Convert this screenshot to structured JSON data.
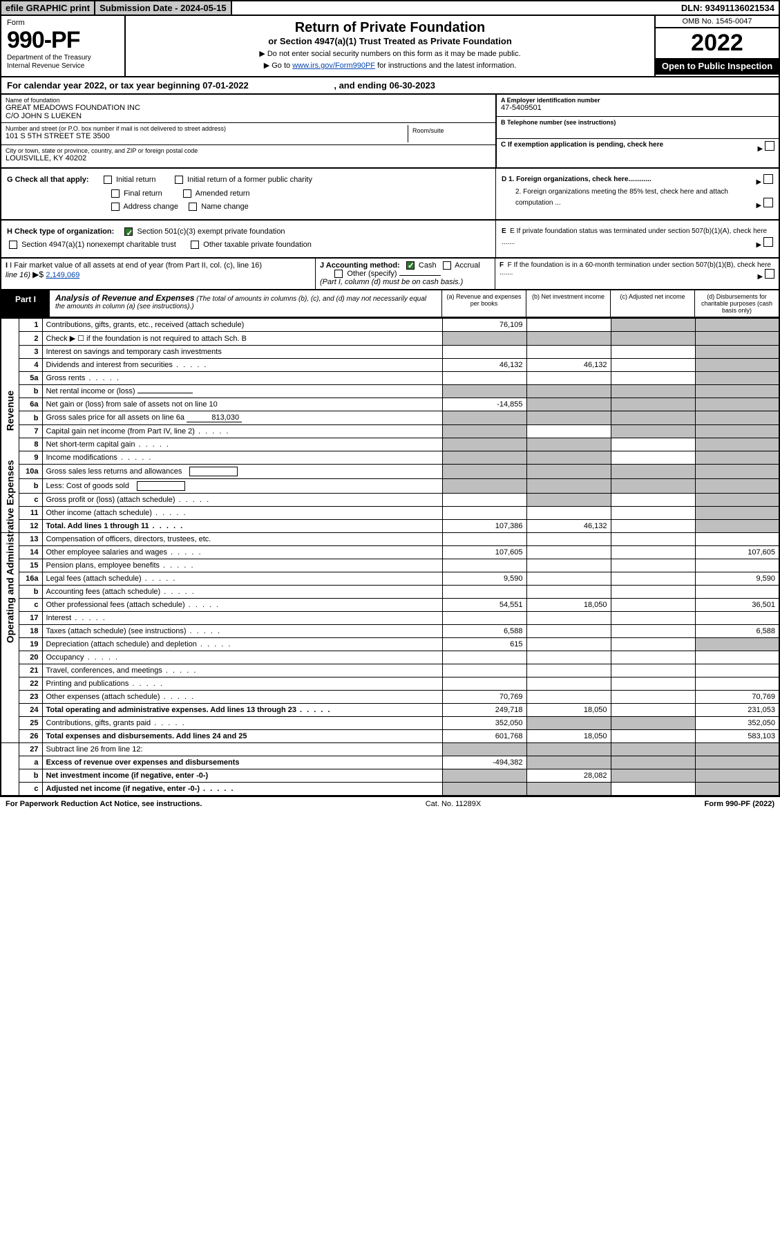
{
  "top": {
    "efile": "efile GRAPHIC print",
    "subdate_label": "Submission Date - 2024-05-15",
    "dln": "DLN: 93491136021534"
  },
  "header": {
    "form_label": "Form",
    "form_number": "990-PF",
    "dept1": "Department of the Treasury",
    "dept2": "Internal Revenue Service",
    "title": "Return of Private Foundation",
    "subtitle": "or Section 4947(a)(1) Trust Treated as Private Foundation",
    "note1": "▶ Do not enter social security numbers on this form as it may be made public.",
    "note2_pre": "▶ Go to ",
    "note2_link": "www.irs.gov/Form990PF",
    "note2_post": " for instructions and the latest information.",
    "omb": "OMB No. 1545-0047",
    "year": "2022",
    "open": "Open to Public Inspection"
  },
  "calyear": {
    "pre": "For calendar year 2022, or tax year beginning ",
    "begin": "07-01-2022",
    "mid": " , and ending ",
    "end": "06-30-2023"
  },
  "info": {
    "name_lbl": "Name of foundation",
    "name1": "GREAT MEADOWS FOUNDATION INC",
    "name2": "C/O JOHN S LUEKEN",
    "addr_lbl": "Number and street (or P.O. box number if mail is not delivered to street address)",
    "addr": "101 S 5TH STREET STE 3500",
    "room_lbl": "Room/suite",
    "city_lbl": "City or town, state or province, country, and ZIP or foreign postal code",
    "city": "LOUISVILLE, KY  40202",
    "a_lbl": "A Employer identification number",
    "a_val": "47-5409501",
    "b_lbl": "B Telephone number (see instructions)",
    "c_lbl": "C If exemption application is pending, check here",
    "d1": "D 1. Foreign organizations, check here............",
    "d2": "2. Foreign organizations meeting the 85% test, check here and attach computation ...",
    "e": "E  If private foundation status was terminated under section 507(b)(1)(A), check here .......",
    "f": "F  If the foundation is in a 60-month termination under section 507(b)(1)(B), check here ......."
  },
  "g": {
    "label": "G Check all that apply:",
    "opts": [
      "Initial return",
      "Final return",
      "Address change",
      "Initial return of a former public charity",
      "Amended return",
      "Name change"
    ]
  },
  "h": {
    "label": "H Check type of organization:",
    "opt1": "Section 501(c)(3) exempt private foundation",
    "opt2": "Section 4947(a)(1) nonexempt charitable trust",
    "opt3": "Other taxable private foundation"
  },
  "i": {
    "label": "I Fair market value of all assets at end of year (from Part II, col. (c), line 16)",
    "arrow": "▶$ ",
    "val": "2,149,069"
  },
  "j": {
    "label": "J Accounting method:",
    "cash": "Cash",
    "accrual": "Accrual",
    "other": "Other (specify)",
    "note": "(Part I, column (d) must be on cash basis.)"
  },
  "part1": {
    "label": "Part I",
    "title": "Analysis of Revenue and Expenses",
    "sub": " (The total of amounts in columns (b), (c), and (d) may not necessarily equal the amounts in column (a) (see instructions).)",
    "cols": {
      "a": "(a)  Revenue and expenses per books",
      "b": "(b)  Net investment income",
      "c": "(c)  Adjusted net income",
      "d": "(d)  Disbursements for charitable purposes (cash basis only)"
    }
  },
  "side": {
    "revenue": "Revenue",
    "expenses": "Operating and Administrative Expenses"
  },
  "rows": [
    {
      "n": "1",
      "d": "Contributions, gifts, grants, etc., received (attach schedule)",
      "a": "76,109",
      "shadeC": true,
      "shadeD": true
    },
    {
      "n": "2",
      "d": "Check ▶ ☐ if the foundation is not required to attach Sch. B",
      "dotsRow": true,
      "shadeA": true,
      "shadeB": true,
      "shadeC": true,
      "shadeD": true
    },
    {
      "n": "3",
      "d": "Interest on savings and temporary cash investments",
      "shadeD": true
    },
    {
      "n": "4",
      "d": "Dividends and interest from securities",
      "dots": true,
      "a": "46,132",
      "b": "46,132",
      "shadeD": true
    },
    {
      "n": "5a",
      "d": "Gross rents",
      "dots": true,
      "shadeD": true
    },
    {
      "n": "b",
      "d": "Net rental income or (loss)",
      "underline": true,
      "shadeA": true,
      "shadeB": true,
      "shadeC": true,
      "shadeD": true
    },
    {
      "n": "6a",
      "d": "Net gain or (loss) from sale of assets not on line 10",
      "a": "-14,855",
      "shadeB": true,
      "shadeC": true,
      "shadeD": true
    },
    {
      "n": "b",
      "d": "Gross sales price for all assets on line 6a",
      "inlineVal": "813,030",
      "shadeA": true,
      "shadeB": true,
      "shadeC": true,
      "shadeD": true
    },
    {
      "n": "7",
      "d": "Capital gain net income (from Part IV, line 2)",
      "dots": true,
      "shadeA": true,
      "shadeC": true,
      "shadeD": true
    },
    {
      "n": "8",
      "d": "Net short-term capital gain",
      "dots": true,
      "shadeA": true,
      "shadeB": true,
      "shadeD": true
    },
    {
      "n": "9",
      "d": "Income modifications",
      "dots": true,
      "shadeA": true,
      "shadeB": true,
      "shadeD": true
    },
    {
      "n": "10a",
      "d": "Gross sales less returns and allowances",
      "box": true,
      "shadeA": true,
      "shadeB": true,
      "shadeC": true,
      "shadeD": true
    },
    {
      "n": "b",
      "d": "Less: Cost of goods sold",
      "dots": true,
      "box": true,
      "shadeA": true,
      "shadeB": true,
      "shadeC": true,
      "shadeD": true
    },
    {
      "n": "c",
      "d": "Gross profit or (loss) (attach schedule)",
      "dots": true,
      "shadeB": true,
      "shadeD": true
    },
    {
      "n": "11",
      "d": "Other income (attach schedule)",
      "dots": true,
      "shadeD": true
    },
    {
      "n": "12",
      "d": "Total. Add lines 1 through 11",
      "bold": true,
      "dots": true,
      "a": "107,386",
      "b": "46,132",
      "shadeD": true
    }
  ],
  "exp_rows": [
    {
      "n": "13",
      "d": "Compensation of officers, directors, trustees, etc."
    },
    {
      "n": "14",
      "d": "Other employee salaries and wages",
      "dots": true,
      "a": "107,605",
      "dd": "107,605"
    },
    {
      "n": "15",
      "d": "Pension plans, employee benefits",
      "dots": true
    },
    {
      "n": "16a",
      "d": "Legal fees (attach schedule)",
      "dots": true,
      "a": "9,590",
      "dd": "9,590"
    },
    {
      "n": "b",
      "d": "Accounting fees (attach schedule)",
      "dots": true
    },
    {
      "n": "c",
      "d": "Other professional fees (attach schedule)",
      "dots": true,
      "a": "54,551",
      "b": "18,050",
      "dd": "36,501"
    },
    {
      "n": "17",
      "d": "Interest",
      "dots": true
    },
    {
      "n": "18",
      "d": "Taxes (attach schedule) (see instructions)",
      "dots": true,
      "a": "6,588",
      "dd": "6,588"
    },
    {
      "n": "19",
      "d": "Depreciation (attach schedule) and depletion",
      "dots": true,
      "a": "615",
      "shadeD": true
    },
    {
      "n": "20",
      "d": "Occupancy",
      "dots": true
    },
    {
      "n": "21",
      "d": "Travel, conferences, and meetings",
      "dots": true
    },
    {
      "n": "22",
      "d": "Printing and publications",
      "dots": true
    },
    {
      "n": "23",
      "d": "Other expenses (attach schedule)",
      "dots": true,
      "a": "70,769",
      "dd": "70,769"
    },
    {
      "n": "24",
      "d": "Total operating and administrative expenses. Add lines 13 through 23",
      "bold": true,
      "dots": true,
      "a": "249,718",
      "b": "18,050",
      "dd": "231,053"
    },
    {
      "n": "25",
      "d": "Contributions, gifts, grants paid",
      "dots": true,
      "a": "352,050",
      "shadeB": true,
      "shadeC": true,
      "dd": "352,050"
    },
    {
      "n": "26",
      "d": "Total expenses and disbursements. Add lines 24 and 25",
      "bold": true,
      "a": "601,768",
      "b": "18,050",
      "dd": "583,103"
    }
  ],
  "bottom_rows": [
    {
      "n": "27",
      "d": "Subtract line 26 from line 12:",
      "shadeA": true,
      "shadeB": true,
      "shadeC": true,
      "shadeD": true
    },
    {
      "n": "a",
      "d": "Excess of revenue over expenses and disbursements",
      "bold": true,
      "a": "-494,382",
      "shadeB": true,
      "shadeC": true,
      "shadeD": true
    },
    {
      "n": "b",
      "d": "Net investment income (if negative, enter -0-)",
      "bold": true,
      "shadeA": true,
      "b": "28,082",
      "shadeC": true,
      "shadeD": true
    },
    {
      "n": "c",
      "d": "Adjusted net income (if negative, enter -0-)",
      "bold": true,
      "dots": true,
      "shadeA": true,
      "shadeB": true,
      "shadeD": true
    }
  ],
  "footer": {
    "left": "For Paperwork Reduction Act Notice, see instructions.",
    "mid": "Cat. No. 11289X",
    "right": "Form 990-PF (2022)"
  },
  "colors": {
    "shade": "#bfbfbf",
    "link": "#0645ad",
    "black": "#000000",
    "checked": "#2b7a2b"
  }
}
